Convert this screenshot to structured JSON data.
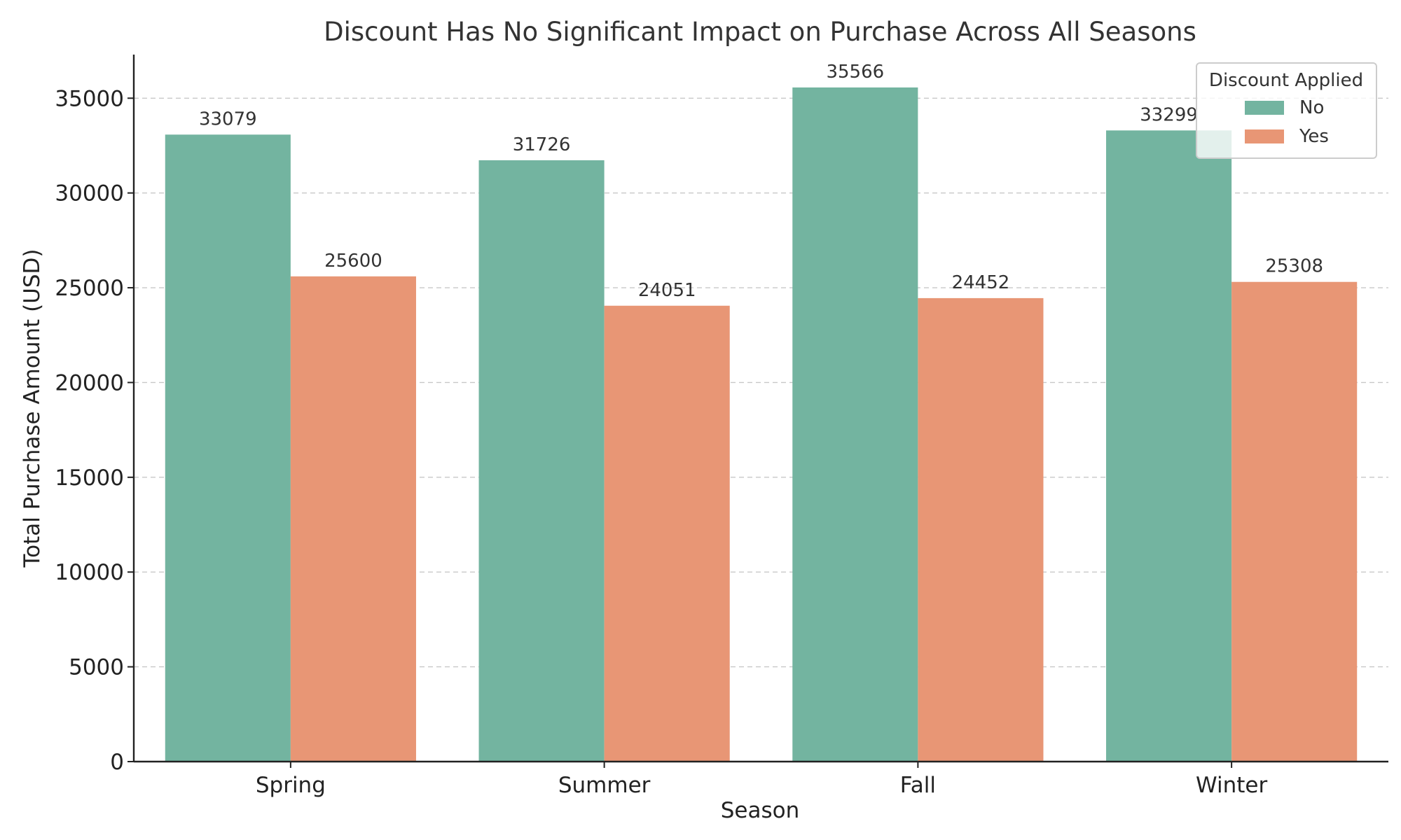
{
  "chart_data": {
    "type": "bar",
    "title": "Discount Has No Significant Impact on Purchase Across All Seasons",
    "xlabel": "Season",
    "ylabel": "Total Purchase Amount (USD)",
    "categories": [
      "Spring",
      "Summer",
      "Fall",
      "Winter"
    ],
    "series": [
      {
        "name": "No",
        "color": "#73b4a0",
        "values": [
          33079,
          31726,
          35566,
          33299
        ]
      },
      {
        "name": "Yes",
        "color": "#e89675",
        "values": [
          25600,
          24051,
          24452,
          25308
        ]
      }
    ],
    "ylim": [
      0,
      37300
    ],
    "yticks": [
      0,
      5000,
      10000,
      15000,
      20000,
      25000,
      30000,
      35000
    ],
    "grid": true,
    "legend": {
      "title": "Discount Applied",
      "placement": "top-right"
    }
  }
}
